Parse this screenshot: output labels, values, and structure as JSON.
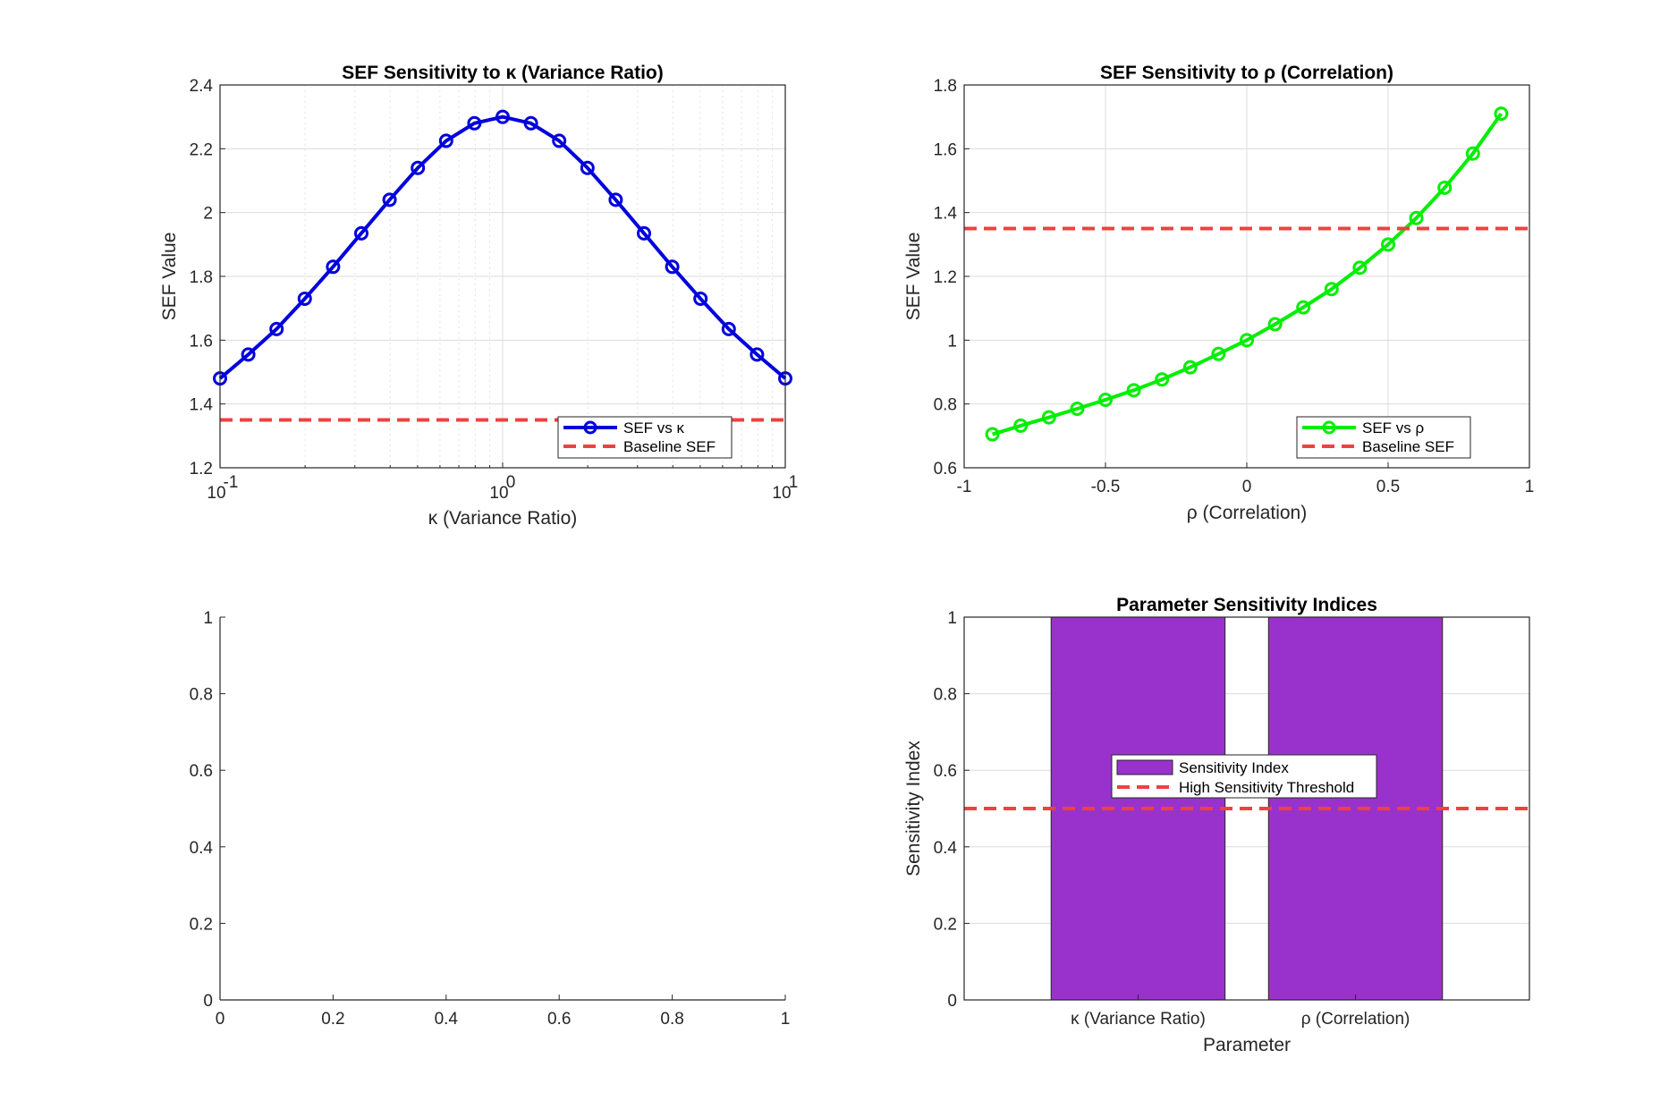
{
  "chart_data": [
    {
      "type": "line",
      "title": "SEF Sensitivity to κ (Variance Ratio)",
      "xlabel": "κ (Variance Ratio)",
      "ylabel": "SEF Value",
      "xscale": "log",
      "xlim": [
        0.1,
        10
      ],
      "ylim": [
        1.2,
        2.4
      ],
      "xticks": [
        {
          "v": 0.1,
          "base": "10",
          "exp": "-1"
        },
        {
          "v": 1,
          "base": "10",
          "exp": "0"
        },
        {
          "v": 10,
          "base": "10",
          "exp": "1"
        }
      ],
      "yticks": [
        1.2,
        1.4,
        1.6,
        1.8,
        2,
        2.2,
        2.4
      ],
      "grid": "on (major and minor)",
      "legend": "bottom-right",
      "series": [
        {
          "name": "SEF vs κ",
          "color": "#0000DD",
          "style": "solid",
          "marker": "circle",
          "x": [
            0.1,
            0.1259,
            0.1585,
            0.1995,
            0.2512,
            0.3162,
            0.3981,
            0.5012,
            0.631,
            0.7943,
            1,
            1.2589,
            1.5849,
            1.9953,
            2.5119,
            3.1623,
            3.9811,
            5.0119,
            6.3096,
            7.9433,
            10
          ],
          "y": [
            1.48,
            1.555,
            1.635,
            1.73,
            1.83,
            1.935,
            2.04,
            2.14,
            2.225,
            2.28,
            2.3,
            2.28,
            2.225,
            2.14,
            2.04,
            1.935,
            1.83,
            1.73,
            1.635,
            1.555,
            1.48
          ]
        },
        {
          "name": "Baseline SEF",
          "color": "#F04040",
          "style": "dashed",
          "x": [
            0.1,
            10
          ],
          "y": [
            1.35,
            1.35
          ]
        }
      ]
    },
    {
      "type": "line",
      "title": "SEF Sensitivity to ρ (Correlation)",
      "xlabel": "ρ (Correlation)",
      "ylabel": "SEF Value",
      "xlim": [
        -1,
        1
      ],
      "ylim": [
        0.6,
        1.8
      ],
      "xticks": [
        -1,
        -0.5,
        0,
        0.5,
        1
      ],
      "yticks": [
        0.6,
        0.8,
        1,
        1.2,
        1.4,
        1.6,
        1.8
      ],
      "grid": "on",
      "legend": "bottom-right",
      "series": [
        {
          "name": "SEF vs ρ",
          "color": "#00EE00",
          "style": "solid",
          "marker": "circle",
          "x": [
            -0.9,
            -0.8,
            -0.7,
            -0.6,
            -0.5,
            -0.4,
            -0.3,
            -0.2,
            -0.1,
            0,
            0.1,
            0.2,
            0.3,
            0.4,
            0.5,
            0.6,
            0.7,
            0.8,
            0.9
          ],
          "y": [
            0.705,
            0.732,
            0.758,
            0.785,
            0.813,
            0.843,
            0.877,
            0.915,
            0.957,
            1.0,
            1.05,
            1.103,
            1.16,
            1.227,
            1.3,
            1.383,
            1.478,
            1.585,
            1.71
          ]
        },
        {
          "name": "Baseline SEF",
          "color": "#F04040",
          "style": "dashed",
          "x": [
            -1,
            1
          ],
          "y": [
            1.35,
            1.35
          ]
        }
      ]
    },
    {
      "type": "line",
      "title": "",
      "xlabel": "",
      "ylabel": "",
      "xlim": [
        0,
        1
      ],
      "ylim": [
        0,
        1
      ],
      "xticks": [
        0,
        0.2,
        0.4,
        0.6,
        0.8,
        1
      ],
      "yticks": [
        0,
        0.2,
        0.4,
        0.6,
        0.8,
        1
      ],
      "grid": "off",
      "series": []
    },
    {
      "type": "bar",
      "title": "Parameter Sensitivity Indices",
      "xlabel": "Parameter",
      "ylabel": "Sensitivity Index",
      "ylim": [
        0,
        1
      ],
      "yticks": [
        0,
        0.2,
        0.4,
        0.6,
        0.8,
        1
      ],
      "categories": [
        "κ (Variance Ratio)",
        "ρ (Correlation)"
      ],
      "grid": "on",
      "legend": "center",
      "series": [
        {
          "name": "Sensitivity Index",
          "color": "#9932CC",
          "values": [
            1,
            1
          ]
        },
        {
          "name": "High Sensitivity Threshold",
          "color": "#F04040",
          "style": "dashed",
          "values": [
            0.5,
            0.5
          ]
        }
      ]
    }
  ]
}
